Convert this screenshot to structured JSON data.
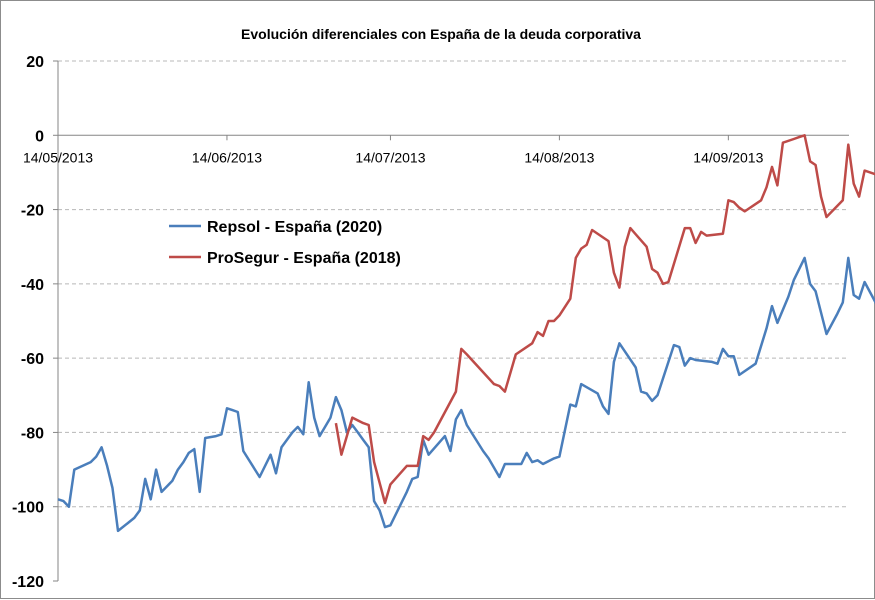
{
  "chart_data": {
    "type": "line",
    "title": "Evolución diferenciales  con España de la deuda corporativa",
    "xlabel": "",
    "ylabel": "",
    "ylim": [
      -120,
      20
    ],
    "yticks": [
      20,
      0,
      -20,
      -40,
      -60,
      -80,
      -100,
      -120
    ],
    "xlim": [
      "2013-05-14",
      "2013-10-08"
    ],
    "xticks": [
      "14/05/2013",
      "14/06/2013",
      "14/07/2013",
      "14/08/2013",
      "14/09/2013"
    ],
    "grid": "horizontal dashed",
    "legend_position": "upper-left inside plot",
    "series": [
      {
        "name": "Repsol - España (2020)",
        "color": "#4a7ebb",
        "points": [
          [
            "2013-05-14",
            -98
          ],
          [
            "2013-05-15",
            -98.5
          ],
          [
            "2013-05-16",
            -100
          ],
          [
            "2013-05-17",
            -90
          ],
          [
            "2013-05-20",
            -88
          ],
          [
            "2013-05-21",
            -86.5
          ],
          [
            "2013-05-22",
            -84
          ],
          [
            "2013-05-23",
            -89
          ],
          [
            "2013-05-24",
            -95
          ],
          [
            "2013-05-25",
            -106.5
          ],
          [
            "2013-05-28",
            -103
          ],
          [
            "2013-05-29",
            -101
          ],
          [
            "2013-05-30",
            -92.5
          ],
          [
            "2013-05-31",
            -98
          ],
          [
            "2013-06-01",
            -90
          ],
          [
            "2013-06-02",
            -96
          ],
          [
            "2013-06-04",
            -93
          ],
          [
            "2013-06-05",
            -90
          ],
          [
            "2013-06-06",
            -88
          ],
          [
            "2013-06-07",
            -85.5
          ],
          [
            "2013-06-08",
            -84.5
          ],
          [
            "2013-06-09",
            -96
          ],
          [
            "2013-06-10",
            -81.5
          ],
          [
            "2013-06-12",
            -81
          ],
          [
            "2013-06-13",
            -80.5
          ],
          [
            "2013-06-14",
            -73.5
          ],
          [
            "2013-06-15",
            -74
          ],
          [
            "2013-06-16",
            -74.5
          ],
          [
            "2013-06-17",
            -85
          ],
          [
            "2013-06-20",
            -92
          ],
          [
            "2013-06-22",
            -86
          ],
          [
            "2013-06-23",
            -91
          ],
          [
            "2013-06-24",
            -84
          ],
          [
            "2013-06-26",
            -80
          ],
          [
            "2013-06-27",
            -78.5
          ],
          [
            "2013-06-28",
            -80.5
          ],
          [
            "2013-06-29",
            -66.5
          ],
          [
            "2013-06-30",
            -76
          ],
          [
            "2013-07-01",
            -81
          ],
          [
            "2013-07-03",
            -76
          ],
          [
            "2013-07-04",
            -70.5
          ],
          [
            "2013-07-05",
            -74
          ],
          [
            "2013-07-06",
            -80
          ],
          [
            "2013-07-07",
            -78
          ],
          [
            "2013-07-08",
            -80
          ],
          [
            "2013-07-09",
            -82
          ],
          [
            "2013-07-10",
            -84
          ],
          [
            "2013-07-11",
            -98.5
          ],
          [
            "2013-07-12",
            -101
          ],
          [
            "2013-07-13",
            -105.5
          ],
          [
            "2013-07-14",
            -105
          ],
          [
            "2013-07-17",
            -96
          ],
          [
            "2013-07-18",
            -92.5
          ],
          [
            "2013-07-19",
            -92
          ],
          [
            "2013-07-20",
            -82
          ],
          [
            "2013-07-21",
            -86
          ],
          [
            "2013-07-24",
            -81
          ],
          [
            "2013-07-25",
            -85
          ],
          [
            "2013-07-26",
            -76.5
          ],
          [
            "2013-07-27",
            -74
          ],
          [
            "2013-07-28",
            -78
          ],
          [
            "2013-07-31",
            -85
          ],
          [
            "2013-08-01",
            -87
          ],
          [
            "2013-08-03",
            -92
          ],
          [
            "2013-08-04",
            -88.5
          ],
          [
            "2013-08-06",
            -88.5
          ],
          [
            "2013-08-07",
            -88.5
          ],
          [
            "2013-08-08",
            -85.5
          ],
          [
            "2013-08-09",
            -88
          ],
          [
            "2013-08-10",
            -87.5
          ],
          [
            "2013-08-11",
            -88.5
          ],
          [
            "2013-08-13",
            -87
          ],
          [
            "2013-08-14",
            -86.5
          ],
          [
            "2013-08-16",
            -72.5
          ],
          [
            "2013-08-17",
            -73
          ],
          [
            "2013-08-18",
            -67
          ],
          [
            "2013-08-21",
            -69.5
          ],
          [
            "2013-08-22",
            -73
          ],
          [
            "2013-08-23",
            -75
          ],
          [
            "2013-08-24",
            -61
          ],
          [
            "2013-08-25",
            -56
          ],
          [
            "2013-08-28",
            -62.5
          ],
          [
            "2013-08-29",
            -69
          ],
          [
            "2013-08-30",
            -69.5
          ],
          [
            "2013-08-31",
            -71.5
          ],
          [
            "2013-09-01",
            -70
          ],
          [
            "2013-09-04",
            -56.5
          ],
          [
            "2013-09-05",
            -57
          ],
          [
            "2013-09-06",
            -62
          ],
          [
            "2013-09-07",
            -60
          ],
          [
            "2013-09-08",
            -60.5
          ],
          [
            "2013-09-11",
            -61
          ],
          [
            "2013-09-12",
            -61.5
          ],
          [
            "2013-09-13",
            -57.5
          ],
          [
            "2013-09-14",
            -59.5
          ],
          [
            "2013-09-15",
            -59.5
          ],
          [
            "2013-09-16",
            -64.5
          ],
          [
            "2013-09-19",
            -61.5
          ],
          [
            "2013-09-21",
            -52
          ],
          [
            "2013-09-22",
            -46
          ],
          [
            "2013-09-23",
            -50.5
          ],
          [
            "2013-09-25",
            -43.5
          ],
          [
            "2013-09-26",
            -39
          ],
          [
            "2013-09-28",
            -33
          ],
          [
            "2013-09-29",
            -40
          ],
          [
            "2013-09-30",
            -42
          ],
          [
            "2013-10-02",
            -53.5
          ],
          [
            "2013-10-04",
            -48
          ],
          [
            "2013-10-05",
            -45
          ],
          [
            "2013-10-06",
            -33
          ],
          [
            "2013-10-07",
            -43
          ],
          [
            "2013-10-08",
            -44
          ],
          [
            "2013-10-09",
            -39.5
          ],
          [
            "2013-10-11",
            -45
          ],
          [
            "2013-10-12",
            -48.5
          ],
          [
            "2013-10-13",
            -49.5
          ]
        ]
      },
      {
        "name": "ProSegur - España (2018)",
        "color": "#be4b48",
        "points": [
          [
            "2013-07-04",
            -77.5
          ],
          [
            "2013-07-05",
            -86
          ],
          [
            "2013-07-07",
            -76
          ],
          [
            "2013-07-09",
            -77.5
          ],
          [
            "2013-07-10",
            -78
          ],
          [
            "2013-07-11",
            -88
          ],
          [
            "2013-07-13",
            -99
          ],
          [
            "2013-07-14",
            -94
          ],
          [
            "2013-07-17",
            -89
          ],
          [
            "2013-07-18",
            -89
          ],
          [
            "2013-07-19",
            -89
          ],
          [
            "2013-07-20",
            -81
          ],
          [
            "2013-07-21",
            -82
          ],
          [
            "2013-07-22",
            -80
          ],
          [
            "2013-07-26",
            -69
          ],
          [
            "2013-07-27",
            -57.5
          ],
          [
            "2013-07-28",
            -59
          ],
          [
            "2013-08-02",
            -67
          ],
          [
            "2013-08-03",
            -67.5
          ],
          [
            "2013-08-04",
            -69
          ],
          [
            "2013-08-06",
            -59
          ],
          [
            "2013-08-09",
            -56
          ],
          [
            "2013-08-10",
            -53
          ],
          [
            "2013-08-11",
            -54
          ],
          [
            "2013-08-12",
            -50
          ],
          [
            "2013-08-13",
            -50
          ],
          [
            "2013-08-14",
            -48.5
          ],
          [
            "2013-08-16",
            -44
          ],
          [
            "2013-08-17",
            -33
          ],
          [
            "2013-08-18",
            -30.5
          ],
          [
            "2013-08-19",
            -29.5
          ],
          [
            "2013-08-20",
            -25.5
          ],
          [
            "2013-08-23",
            -28.5
          ],
          [
            "2013-08-24",
            -37
          ],
          [
            "2013-08-25",
            -41
          ],
          [
            "2013-08-26",
            -30
          ],
          [
            "2013-08-27",
            -25
          ],
          [
            "2013-08-30",
            -30
          ],
          [
            "2013-08-31",
            -36
          ],
          [
            "2013-09-01",
            -37
          ],
          [
            "2013-09-02",
            -40
          ],
          [
            "2013-09-03",
            -39.5
          ],
          [
            "2013-09-06",
            -25
          ],
          [
            "2013-09-07",
            -25
          ],
          [
            "2013-09-08",
            -29
          ],
          [
            "2013-09-09",
            -26
          ],
          [
            "2013-09-10",
            -27
          ],
          [
            "2013-09-13",
            -26.5
          ],
          [
            "2013-09-14",
            -17.5
          ],
          [
            "2013-09-15",
            -18
          ],
          [
            "2013-09-16",
            -19.5
          ],
          [
            "2013-09-17",
            -20.5
          ],
          [
            "2013-09-20",
            -17.5
          ],
          [
            "2013-09-21",
            -14
          ],
          [
            "2013-09-22",
            -8.5
          ],
          [
            "2013-09-23",
            -13.5
          ],
          [
            "2013-09-24",
            -2
          ],
          [
            "2013-09-26",
            -1
          ],
          [
            "2013-09-27",
            -0.5
          ],
          [
            "2013-09-28",
            0
          ],
          [
            "2013-09-29",
            -7
          ],
          [
            "2013-09-30",
            -8
          ],
          [
            "2013-10-01",
            -16.5
          ],
          [
            "2013-10-02",
            -22
          ],
          [
            "2013-10-05",
            -17.5
          ],
          [
            "2013-10-06",
            -2.5
          ],
          [
            "2013-10-07",
            -13
          ],
          [
            "2013-10-08",
            -16.5
          ],
          [
            "2013-10-09",
            -9.5
          ],
          [
            "2013-10-12",
            -11
          ],
          [
            "2013-10-13",
            -11.5
          ]
        ]
      }
    ]
  }
}
